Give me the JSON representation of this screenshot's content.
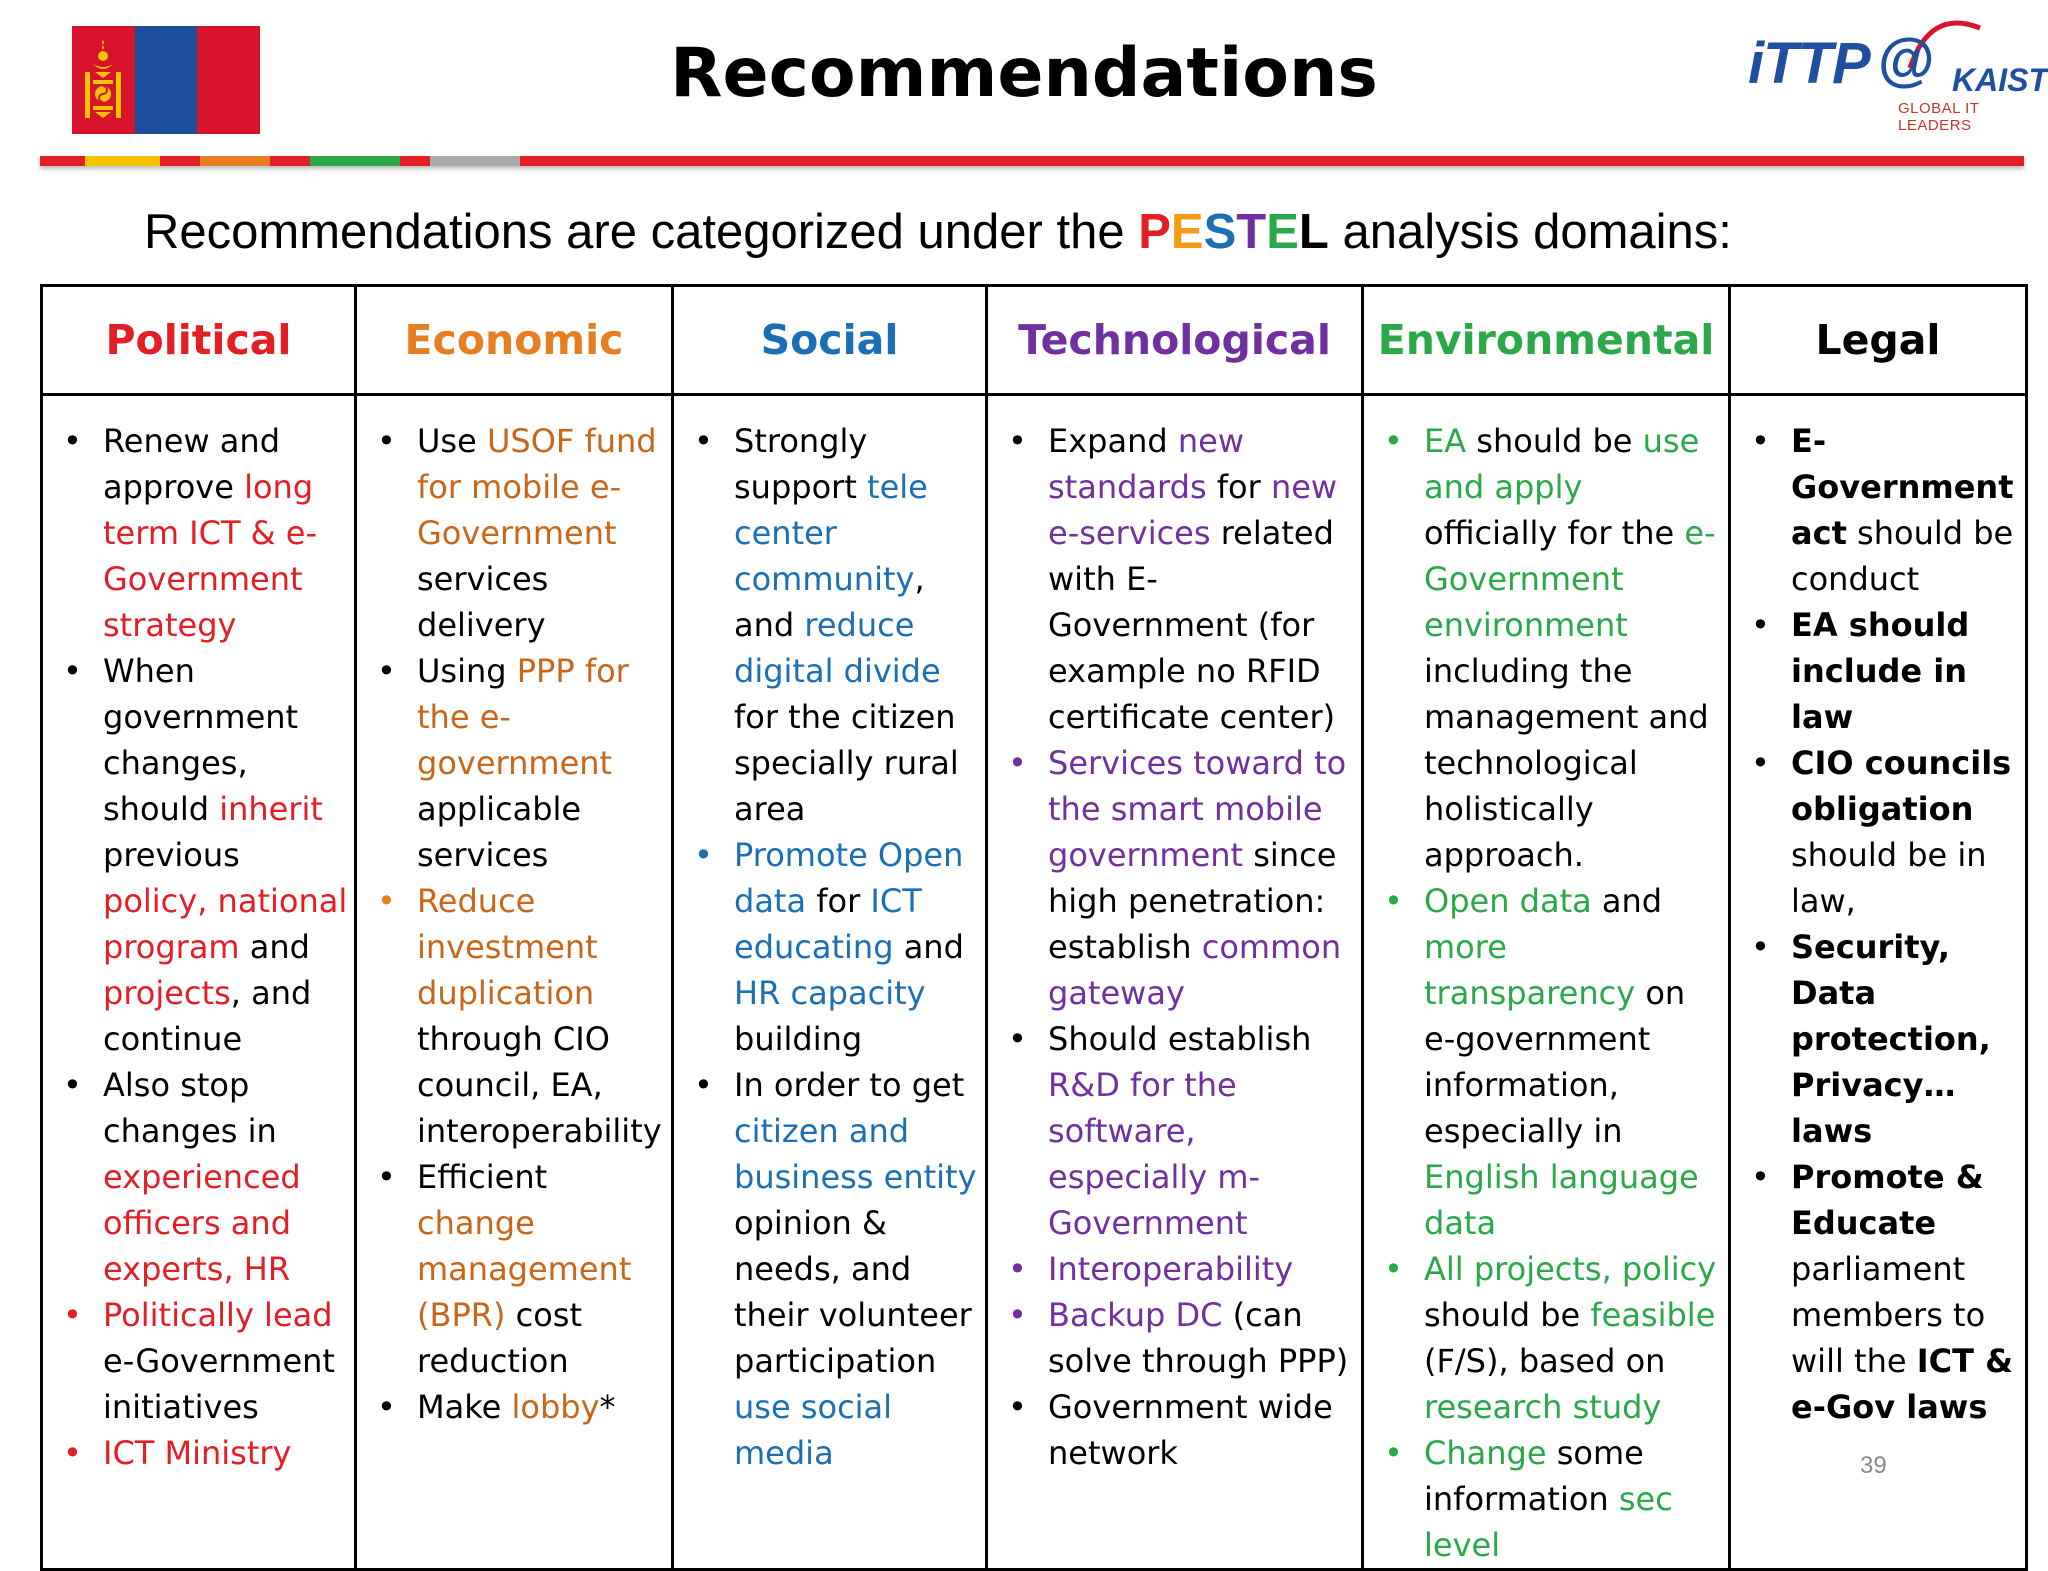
{
  "header": {
    "title": "Recommendations",
    "logo": {
      "brand": "iTTP",
      "at": "@",
      "partner": "KAIST",
      "tagline": "GLOBAL IT LEADERS"
    },
    "flag": "mongolia-flag"
  },
  "subtitle": {
    "before": "Recommendations are categorized under the ",
    "letters": [
      {
        "ch": "P",
        "color": "#e31e24"
      },
      {
        "ch": "E",
        "color": "#f39c12"
      },
      {
        "ch": "S",
        "color": "#1c6fb5"
      },
      {
        "ch": "T",
        "color": "#7030a0"
      },
      {
        "ch": "E",
        "color": "#2aa84a"
      },
      {
        "ch": "L",
        "color": "#000000"
      }
    ],
    "after": " analysis domains:"
  },
  "table": {
    "headers": [
      {
        "label": "Political",
        "color": "#e31e24"
      },
      {
        "label": "Economic",
        "color": "#e67e22"
      },
      {
        "label": "Social",
        "color": "#1c6fb5"
      },
      {
        "label": "Technological",
        "color": "#7030a0"
      },
      {
        "label": "Environmental",
        "color": "#2aa84a"
      },
      {
        "label": "Legal",
        "color": "#000000"
      }
    ],
    "columns": [
      {
        "items": [
          {
            "bullet": "#000000",
            "parts": [
              [
                "Renew and approve ",
                ""
              ],
              [
                "long term ICT & e-Government strategy",
                "red"
              ]
            ]
          },
          {
            "bullet": "#000000",
            "parts": [
              [
                "When government changes, should ",
                ""
              ],
              [
                "inherit",
                "red"
              ],
              [
                " previous ",
                ""
              ],
              [
                "policy, national program",
                "red"
              ],
              [
                " and ",
                ""
              ],
              [
                "projects",
                "red"
              ],
              [
                ", and continue",
                ""
              ]
            ]
          },
          {
            "bullet": "#000000",
            "parts": [
              [
                "Also stop changes in ",
                ""
              ],
              [
                "experienced officers and experts, HR",
                "red"
              ]
            ]
          },
          {
            "bullet": "#e31e24",
            "parts": [
              [
                "Politically lead",
                "red"
              ],
              [
                " e-Government initiatives",
                ""
              ]
            ]
          },
          {
            "bullet": "#e31e24",
            "parts": [
              [
                "ICT Ministry",
                "red"
              ]
            ]
          }
        ]
      },
      {
        "items": [
          {
            "bullet": "#000000",
            "parts": [
              [
                "Use ",
                ""
              ],
              [
                "USOF fund for mobile e-Government",
                "orange"
              ],
              [
                " services delivery",
                ""
              ]
            ]
          },
          {
            "bullet": "#000000",
            "parts": [
              [
                "Using ",
                ""
              ],
              [
                "PPP for the e-government",
                "orange"
              ],
              [
                " applicable services",
                ""
              ]
            ]
          },
          {
            "bullet": "#e67e22",
            "parts": [
              [
                "Reduce investment duplication",
                "orange"
              ],
              [
                " through CIO council, EA, interoperability",
                ""
              ]
            ]
          },
          {
            "bullet": "#000000",
            "parts": [
              [
                "Efficient ",
                ""
              ],
              [
                "change management (BPR)",
                "orange"
              ],
              [
                " cost reduction",
                ""
              ]
            ]
          },
          {
            "bullet": "#000000",
            "parts": [
              [
                "Make ",
                ""
              ],
              [
                "lobby",
                "orange"
              ],
              [
                "*",
                ""
              ]
            ]
          }
        ]
      },
      {
        "items": [
          {
            "bullet": "#000000",
            "parts": [
              [
                "Strongly support ",
                ""
              ],
              [
                "tele center community",
                "blue"
              ],
              [
                ", and ",
                ""
              ],
              [
                "reduce digital divide",
                "blue"
              ],
              [
                " for the citizen specially rural area",
                ""
              ]
            ]
          },
          {
            "bullet": "#1c6fb5",
            "parts": [
              [
                "Promote Open data",
                "blue"
              ],
              [
                " for ",
                ""
              ],
              [
                "ICT educating",
                "blue"
              ],
              [
                " and ",
                ""
              ],
              [
                "HR capacity",
                "blue"
              ],
              [
                " building",
                ""
              ]
            ]
          },
          {
            "bullet": "#000000",
            "parts": [
              [
                "In order to get ",
                ""
              ],
              [
                "citizen and business entity",
                "blue"
              ],
              [
                " opinion & needs, and their volunteer participation ",
                ""
              ],
              [
                "use social media",
                "blue"
              ]
            ]
          }
        ]
      },
      {
        "items": [
          {
            "bullet": "#000000",
            "parts": [
              [
                "Expand ",
                ""
              ],
              [
                "new standards",
                "purple"
              ],
              [
                " for ",
                ""
              ],
              [
                "new e-services",
                "purple"
              ],
              [
                " related with E-Government (for example no RFID certificate center)",
                ""
              ]
            ]
          },
          {
            "bullet": "#7030a0",
            "parts": [
              [
                "Services toward to the smart mobile government",
                "purple"
              ],
              [
                " since high penetration: establish ",
                ""
              ],
              [
                "common gateway",
                "purple"
              ]
            ]
          },
          {
            "bullet": "#000000",
            "parts": [
              [
                "Should establish ",
                ""
              ],
              [
                "R&D for the software, especially m-Government",
                "purple"
              ]
            ]
          },
          {
            "bullet": "#7030a0",
            "parts": [
              [
                "Interoperability",
                "purple"
              ]
            ]
          },
          {
            "bullet": "#7030a0",
            "parts": [
              [
                "Backup DC",
                "purple"
              ],
              [
                " (can solve through PPP)",
                ""
              ]
            ]
          },
          {
            "bullet": "#000000",
            "parts": [
              [
                "Government wide network",
                ""
              ]
            ]
          }
        ]
      },
      {
        "items": [
          {
            "bullet": "#2aa84a",
            "parts": [
              [
                "EA",
                "green"
              ],
              [
                " should be ",
                ""
              ],
              [
                "use and apply",
                "green"
              ],
              [
                " officially for the ",
                ""
              ],
              [
                "e-Government environment",
                "green"
              ],
              [
                " including the management and technological holistically approach.",
                ""
              ]
            ]
          },
          {
            "bullet": "#2aa84a",
            "parts": [
              [
                "Open data",
                "green"
              ],
              [
                " and ",
                ""
              ],
              [
                "more transparency",
                "green"
              ],
              [
                " on e-government information, especially in ",
                ""
              ],
              [
                "English language data",
                "green"
              ]
            ]
          },
          {
            "bullet": "#2aa84a",
            "parts": [
              [
                "All projects, policy",
                "green"
              ],
              [
                " should be ",
                ""
              ],
              [
                "feasible",
                "green"
              ],
              [
                " (F/S), based on ",
                ""
              ],
              [
                "research study",
                "green"
              ]
            ]
          },
          {
            "bullet": "#2aa84a",
            "parts": [
              [
                "Change",
                "green"
              ],
              [
                " some information ",
                ""
              ],
              [
                "sec level",
                "green"
              ]
            ]
          }
        ]
      },
      {
        "items": [
          {
            "bullet": "#000000",
            "parts": [
              [
                "E-Government act",
                "bold"
              ],
              [
                " should be conduct",
                ""
              ]
            ]
          },
          {
            "bullet": "#000000",
            "parts": [
              [
                "EA should include in law",
                "bold"
              ]
            ]
          },
          {
            "bullet": "#000000",
            "parts": [
              [
                "CIO councils obligation",
                "bold"
              ],
              [
                " should be in law,",
                ""
              ]
            ]
          },
          {
            "bullet": "#000000",
            "parts": [
              [
                "Security, Data protection, Privacy… laws",
                "bold"
              ]
            ]
          },
          {
            "bullet": "#000000",
            "parts": [
              [
                "Promote & Educate",
                "bold"
              ],
              [
                " parliament members to will the ",
                ""
              ],
              [
                "ICT & e-Gov laws",
                "bold"
              ]
            ]
          }
        ]
      }
    ]
  },
  "page_number": "39"
}
